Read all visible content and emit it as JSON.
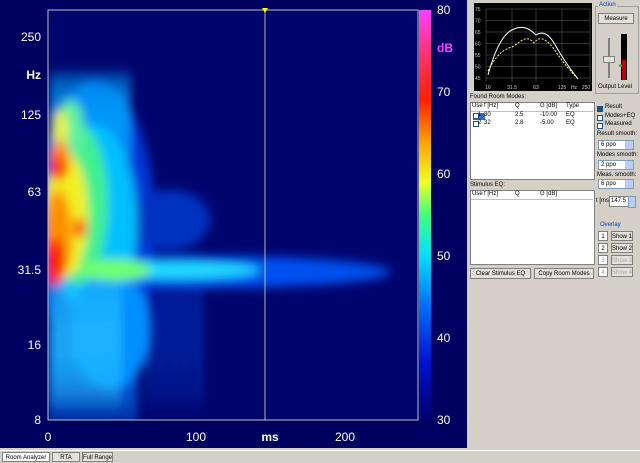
{
  "plot": {
    "y_labels": [
      "250",
      "Hz",
      "125",
      "63",
      "31.5",
      "16",
      "8"
    ],
    "x_labels": [
      "0",
      "100",
      "ms",
      "200"
    ],
    "colorbar_unit": "dB",
    "colorbar_labels": [
      "80",
      "70",
      "60",
      "50",
      "40",
      "30"
    ]
  },
  "mini_chart": {
    "y_labels": [
      "75",
      "70",
      "65",
      "60",
      "55",
      "50",
      "45"
    ],
    "x_labels": [
      "16",
      "31.5",
      "63",
      "125",
      "Hz",
      "250"
    ]
  },
  "action": {
    "title": "Action",
    "measure": "Measure",
    "output_level": "Output Level"
  },
  "room_modes": {
    "title": "Found Room Modes:",
    "headers": [
      "Use",
      "f [Hz]",
      "Q",
      "G [dB]",
      "Type"
    ],
    "rows": [
      [
        "1",
        "30",
        "2.5",
        "-10.00",
        "EQ"
      ],
      [
        "2",
        "32",
        "2.8",
        "-5.00",
        "EQ"
      ]
    ]
  },
  "options": {
    "checkboxes": [
      "Result",
      "Modes+EQ",
      "Measured"
    ],
    "result_smooth": "Result smooth:",
    "result_smooth_value": "6 ppo",
    "modes_smooth": "Modes smooth:",
    "modes_smooth_value": "2 ppo",
    "meas_smooth": "Meas. smooth:",
    "meas_smooth_value": "6 ppo",
    "t_label": "t [ms]",
    "t_value": "147.5"
  },
  "stimulus_eq": {
    "title": "Stimulus EQ:",
    "headers": [
      "Use",
      "f [Hz]",
      "Q",
      "G [dB]"
    ]
  },
  "buttons": {
    "clear": "Clear Stimulus EQ",
    "copy": "Copy Room Modes"
  },
  "overlay": {
    "title": "Overlay",
    "numbers": [
      "1",
      "2",
      "3",
      "4"
    ],
    "shows": [
      "Show 1",
      "Show 2",
      "Show 3",
      "Show 4"
    ]
  },
  "tabs": [
    "Room Analyzer",
    "RTA",
    "Full Range"
  ]
}
